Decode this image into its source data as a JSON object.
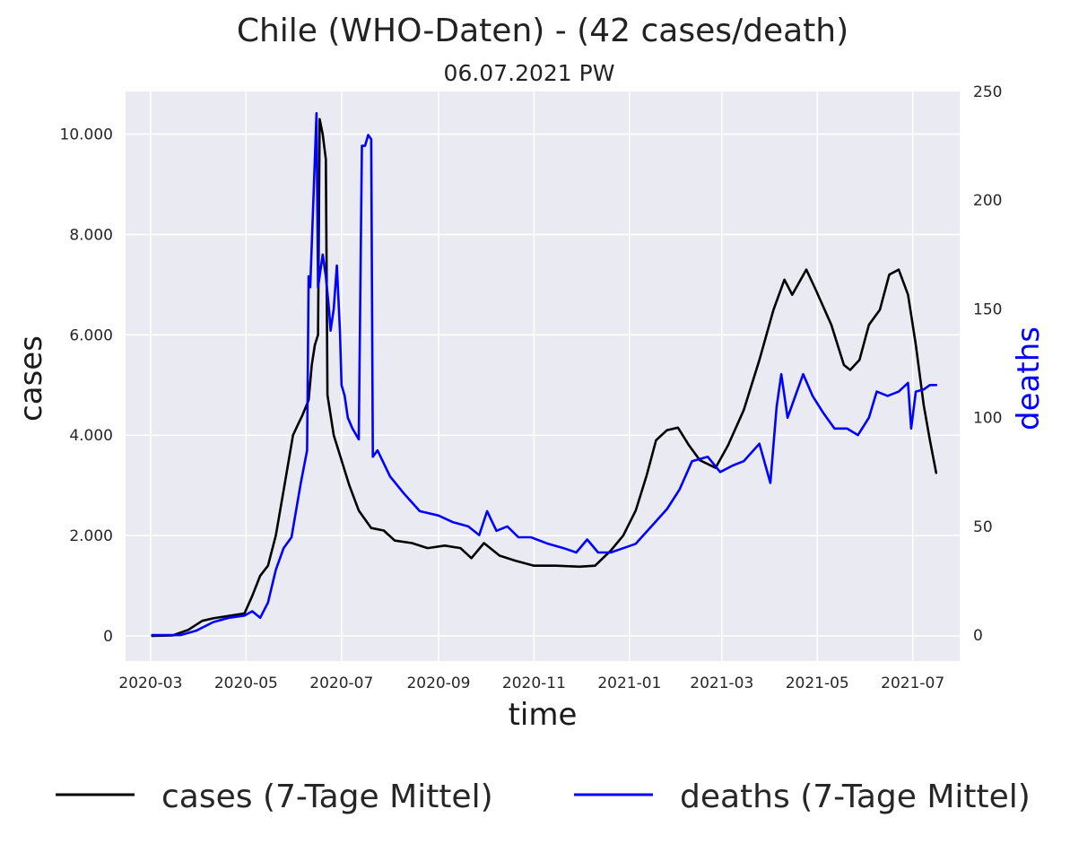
{
  "chart_data": {
    "type": "line",
    "title": "Chile (WHO-Daten) - (42 cases/death)",
    "subtitle": "06.07.2021 PW",
    "xlabel": "time",
    "ylabel": "cases",
    "ylabel_right": "deaths",
    "x_ticks": [
      "2020-03",
      "2020-05",
      "2020-07",
      "2020-09",
      "2020-11",
      "2021-01",
      "2021-03",
      "2021-05",
      "2021-07"
    ],
    "y_ticks_left": [
      "0",
      "2.000",
      "4.000",
      "6.000",
      "8.000",
      "10.000"
    ],
    "y_ticks_right": [
      "0",
      "50",
      "100",
      "150",
      "200",
      "250"
    ],
    "xlim": [
      "2020-02-14",
      "2021-07-31"
    ],
    "ylim_left": [
      -500,
      10850
    ],
    "ylim_right": [
      -11.9,
      250
    ],
    "grid": true,
    "legend_position": "bottom",
    "series": [
      {
        "name": "cases (7-Tage Mittel)",
        "axis": "left",
        "color": "#000000",
        "points": [
          [
            "2020-03-02",
            0
          ],
          [
            "2020-03-15",
            10
          ],
          [
            "2020-03-25",
            120
          ],
          [
            "2020-04-03",
            300
          ],
          [
            "2020-04-10",
            350
          ],
          [
            "2020-04-20",
            400
          ],
          [
            "2020-04-30",
            450
          ],
          [
            "2020-05-05",
            800
          ],
          [
            "2020-05-10",
            1200
          ],
          [
            "2020-05-15",
            1400
          ],
          [
            "2020-05-20",
            2000
          ],
          [
            "2020-05-25",
            2900
          ],
          [
            "2020-05-31",
            4000
          ],
          [
            "2020-06-03",
            4200
          ],
          [
            "2020-06-06",
            4400
          ],
          [
            "2020-06-10",
            4700
          ],
          [
            "2020-06-12",
            5400
          ],
          [
            "2020-06-14",
            5800
          ],
          [
            "2020-06-16",
            6000
          ],
          [
            "2020-06-17",
            10300
          ],
          [
            "2020-06-19",
            10000
          ],
          [
            "2020-06-21",
            9500
          ],
          [
            "2020-06-22",
            4800
          ],
          [
            "2020-06-26",
            4000
          ],
          [
            "2020-07-01",
            3500
          ],
          [
            "2020-07-06",
            3000
          ],
          [
            "2020-07-12",
            2500
          ],
          [
            "2020-07-20",
            2150
          ],
          [
            "2020-07-28",
            2100
          ],
          [
            "2020-08-04",
            1900
          ],
          [
            "2020-08-15",
            1850
          ],
          [
            "2020-08-25",
            1750
          ],
          [
            "2020-09-05",
            1800
          ],
          [
            "2020-09-15",
            1750
          ],
          [
            "2020-09-22",
            1550
          ],
          [
            "2020-09-30",
            1850
          ],
          [
            "2020-10-10",
            1600
          ],
          [
            "2020-10-20",
            1500
          ],
          [
            "2020-11-01",
            1400
          ],
          [
            "2020-11-15",
            1400
          ],
          [
            "2020-11-30",
            1380
          ],
          [
            "2020-12-10",
            1400
          ],
          [
            "2020-12-20",
            1700
          ],
          [
            "2020-12-28",
            2000
          ],
          [
            "2021-01-05",
            2500
          ],
          [
            "2021-01-12",
            3200
          ],
          [
            "2021-01-18",
            3900
          ],
          [
            "2021-01-25",
            4100
          ],
          [
            "2021-02-01",
            4150
          ],
          [
            "2021-02-08",
            3800
          ],
          [
            "2021-02-15",
            3500
          ],
          [
            "2021-02-25",
            3350
          ],
          [
            "2021-03-05",
            3800
          ],
          [
            "2021-03-15",
            4500
          ],
          [
            "2021-03-25",
            5500
          ],
          [
            "2021-04-03",
            6500
          ],
          [
            "2021-04-10",
            7100
          ],
          [
            "2021-04-15",
            6800
          ],
          [
            "2021-04-24",
            7300
          ],
          [
            "2021-04-30",
            6900
          ],
          [
            "2021-05-10",
            6200
          ],
          [
            "2021-05-18",
            5400
          ],
          [
            "2021-05-22",
            5300
          ],
          [
            "2021-05-28",
            5500
          ],
          [
            "2021-06-03",
            6200
          ],
          [
            "2021-06-10",
            6500
          ],
          [
            "2021-06-16",
            7200
          ],
          [
            "2021-06-22",
            7300
          ],
          [
            "2021-06-28",
            6800
          ],
          [
            "2021-07-03",
            5800
          ],
          [
            "2021-07-08",
            4600
          ],
          [
            "2021-07-12",
            3900
          ],
          [
            "2021-07-16",
            3250
          ]
        ]
      },
      {
        "name": "deaths (7-Tage Mittel)",
        "axis": "right",
        "color": "#0000ff",
        "points": [
          [
            "2020-03-02",
            0
          ],
          [
            "2020-03-20",
            0
          ],
          [
            "2020-03-30",
            2
          ],
          [
            "2020-04-10",
            6
          ],
          [
            "2020-04-20",
            8
          ],
          [
            "2020-04-30",
            9
          ],
          [
            "2020-05-05",
            11
          ],
          [
            "2020-05-10",
            8
          ],
          [
            "2020-05-15",
            15
          ],
          [
            "2020-05-20",
            30
          ],
          [
            "2020-05-25",
            40
          ],
          [
            "2020-05-30",
            45
          ],
          [
            "2020-06-05",
            70
          ],
          [
            "2020-06-09",
            85
          ],
          [
            "2020-06-10",
            165
          ],
          [
            "2020-06-11",
            160
          ],
          [
            "2020-06-13",
            200
          ],
          [
            "2020-06-15",
            240
          ],
          [
            "2020-06-16",
            160
          ],
          [
            "2020-06-19",
            175
          ],
          [
            "2020-06-21",
            165
          ],
          [
            "2020-06-23",
            150
          ],
          [
            "2020-06-24",
            140
          ],
          [
            "2020-06-26",
            150
          ],
          [
            "2020-06-28",
            170
          ],
          [
            "2020-06-30",
            140
          ],
          [
            "2020-07-01",
            115
          ],
          [
            "2020-07-03",
            110
          ],
          [
            "2020-07-05",
            100
          ],
          [
            "2020-07-08",
            95
          ],
          [
            "2020-07-12",
            90
          ],
          [
            "2020-07-14",
            225
          ],
          [
            "2020-07-16",
            225
          ],
          [
            "2020-07-18",
            230
          ],
          [
            "2020-07-20",
            228
          ],
          [
            "2020-07-21",
            82
          ],
          [
            "2020-07-24",
            85
          ],
          [
            "2020-08-01",
            73
          ],
          [
            "2020-08-10",
            65
          ],
          [
            "2020-08-20",
            57
          ],
          [
            "2020-09-01",
            55
          ],
          [
            "2020-09-10",
            52
          ],
          [
            "2020-09-20",
            50
          ],
          [
            "2020-09-27",
            46
          ],
          [
            "2020-10-02",
            57
          ],
          [
            "2020-10-08",
            48
          ],
          [
            "2020-10-15",
            50
          ],
          [
            "2020-10-22",
            45
          ],
          [
            "2020-10-30",
            45
          ],
          [
            "2020-11-10",
            42
          ],
          [
            "2020-11-20",
            40
          ],
          [
            "2020-11-28",
            38
          ],
          [
            "2020-12-05",
            44
          ],
          [
            "2020-12-12",
            38
          ],
          [
            "2020-12-20",
            38
          ],
          [
            "2020-12-28",
            40
          ],
          [
            "2021-01-05",
            42
          ],
          [
            "2021-01-15",
            50
          ],
          [
            "2021-01-25",
            58
          ],
          [
            "2021-02-02",
            67
          ],
          [
            "2021-02-10",
            80
          ],
          [
            "2021-02-20",
            82
          ],
          [
            "2021-02-28",
            75
          ],
          [
            "2021-03-08",
            78
          ],
          [
            "2021-03-15",
            80
          ],
          [
            "2021-03-25",
            88
          ],
          [
            "2021-04-01",
            70
          ],
          [
            "2021-04-05",
            105
          ],
          [
            "2021-04-08",
            120
          ],
          [
            "2021-04-12",
            100
          ],
          [
            "2021-04-18",
            112
          ],
          [
            "2021-04-22",
            120
          ],
          [
            "2021-04-28",
            110
          ],
          [
            "2021-05-05",
            102
          ],
          [
            "2021-05-12",
            95
          ],
          [
            "2021-05-20",
            95
          ],
          [
            "2021-05-27",
            92
          ],
          [
            "2021-06-03",
            100
          ],
          [
            "2021-06-08",
            112
          ],
          [
            "2021-06-15",
            110
          ],
          [
            "2021-06-22",
            112
          ],
          [
            "2021-06-28",
            116
          ],
          [
            "2021-06-30",
            95
          ],
          [
            "2021-07-03",
            112
          ],
          [
            "2021-07-08",
            113
          ],
          [
            "2021-07-12",
            115
          ],
          [
            "2021-07-16",
            115
          ]
        ]
      }
    ]
  }
}
